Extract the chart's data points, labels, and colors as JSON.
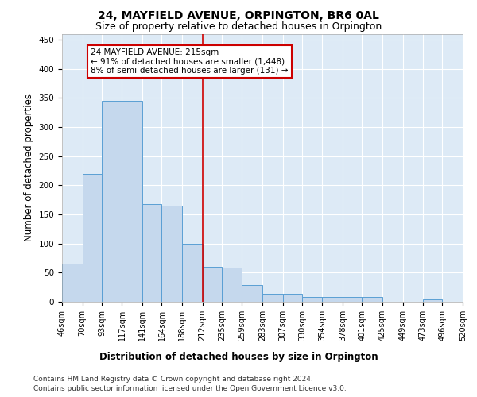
{
  "title": "24, MAYFIELD AVENUE, ORPINGTON, BR6 0AL",
  "subtitle": "Size of property relative to detached houses in Orpington",
  "xlabel": "Distribution of detached houses by size in Orpington",
  "ylabel": "Number of detached properties",
  "bar_color": "#c5d8ed",
  "bar_edge_color": "#5a9fd4",
  "background_color": "#ddeaf6",
  "grid_color": "#ffffff",
  "vline_x": 212,
  "vline_color": "#cc0000",
  "bin_edges": [
    46,
    70,
    93,
    117,
    141,
    164,
    188,
    212,
    235,
    259,
    283,
    307,
    330,
    354,
    378,
    401,
    425,
    449,
    473,
    496,
    520
  ],
  "bin_heights": [
    65,
    220,
    345,
    345,
    167,
    165,
    100,
    60,
    58,
    28,
    13,
    13,
    8,
    8,
    8,
    8,
    0,
    0,
    4,
    0
  ],
  "ylim": [
    0,
    460
  ],
  "yticks": [
    0,
    50,
    100,
    150,
    200,
    250,
    300,
    350,
    400,
    450
  ],
  "annotation_text": "24 MAYFIELD AVENUE: 215sqm\n← 91% of detached houses are smaller (1,448)\n8% of semi-detached houses are larger (131) →",
  "annotation_box_color": "#ffffff",
  "annotation_box_edge_color": "#cc0000",
  "footer_line1": "Contains HM Land Registry data © Crown copyright and database right 2024.",
  "footer_line2": "Contains public sector information licensed under the Open Government Licence v3.0.",
  "title_fontsize": 10,
  "subtitle_fontsize": 9,
  "axis_label_fontsize": 8.5,
  "tick_fontsize": 7.5,
  "annotation_fontsize": 7.5,
  "footer_fontsize": 6.5
}
